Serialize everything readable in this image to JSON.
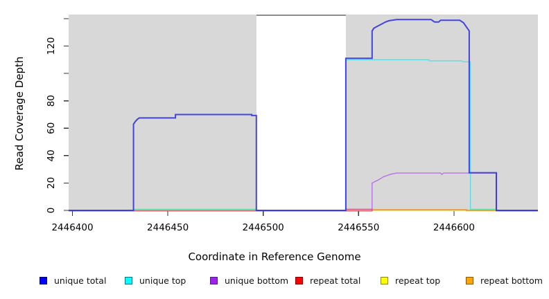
{
  "chart_data": {
    "type": "line",
    "title": "",
    "xlabel": "Coordinate in Reference Genome",
    "ylabel": "Read Coverage Depth",
    "xlim": [
      2446398,
      2446644
    ],
    "ylim": [
      -0.5,
      143
    ],
    "grid": false,
    "legend_position": "bottom",
    "panel_background": "#d8d8d8",
    "x_ticks": [
      {
        "value": 2446400,
        "label": "2446400"
      },
      {
        "value": 2446450,
        "label": "2446450"
      },
      {
        "value": 2446500,
        "label": "2446500"
      },
      {
        "value": 2446550,
        "label": "2446550"
      },
      {
        "value": 2446600,
        "label": "2446600"
      }
    ],
    "y_ticks": [
      {
        "value": 0,
        "label": "0"
      },
      {
        "value": 20,
        "label": "20"
      },
      {
        "value": 40,
        "label": "40"
      },
      {
        "value": 60,
        "label": "60"
      },
      {
        "value": 80,
        "label": "80"
      },
      {
        "value": 100,
        "label": ""
      },
      {
        "value": 120,
        "label": "120"
      },
      {
        "value": 140,
        "label": ""
      }
    ],
    "shaded_regions": [
      {
        "x0": 2446398,
        "x1": 2446496.4,
        "color": "#d8d8d8"
      },
      {
        "x0": 2446543.3,
        "x1": 2446644,
        "color": "#d8d8d8"
      }
    ],
    "uncovered_gap": {
      "x0": 2446496.4,
      "x1": 2446543.3,
      "cap_color": "#8c8c8c"
    },
    "series": [
      {
        "name": "repeat top",
        "color": "#ffff00",
        "plot_color": "#d8e868",
        "opacity": 1,
        "width": 1.4,
        "points": [
          [
            2446398,
            0
          ],
          [
            2446432,
            0
          ],
          [
            2446432,
            0.8
          ],
          [
            2446496.4,
            0.8
          ],
          [
            2446496.4,
            0
          ],
          [
            2446608.6,
            0
          ],
          [
            2446608.6,
            0.8
          ],
          [
            2446622.2,
            0.8
          ],
          [
            2446622.2,
            0
          ],
          [
            2446644,
            0
          ]
        ]
      },
      {
        "name": "repeat total",
        "color": "#ff0000",
        "plot_color": "#d4608e",
        "opacity": 1,
        "width": 1.5,
        "points": [
          [
            2446398,
            0
          ],
          [
            2446543.3,
            0
          ],
          [
            2446543.3,
            0.8
          ],
          [
            2446557.1,
            0.8
          ],
          [
            2446557.1,
            0.5
          ],
          [
            2446606.6,
            0.5
          ],
          [
            2446606.6,
            0
          ],
          [
            2446644,
            0
          ]
        ]
      },
      {
        "name": "repeat bottom",
        "color": "#ffa500",
        "plot_color": "#ff9d20",
        "opacity": 1,
        "width": 1.7,
        "points": [
          [
            2446398,
            0
          ],
          [
            2446557.1,
            0
          ],
          [
            2446557.1,
            0.4
          ],
          [
            2446606.6,
            0.4
          ],
          [
            2446606.6,
            0
          ],
          [
            2446644,
            0
          ]
        ]
      },
      {
        "name": "unique bottom",
        "color": "#a020f0",
        "plot_color": "#a020f0",
        "opacity": 0.6,
        "width": 1.3,
        "points": [
          [
            2446398,
            -0.5
          ],
          [
            2446557.1,
            -0.5
          ],
          [
            2446557.1,
            20
          ],
          [
            2446558.5,
            21
          ],
          [
            2446560,
            22
          ],
          [
            2446561.5,
            23.2
          ],
          [
            2446563,
            24.5
          ],
          [
            2446565,
            25.5
          ],
          [
            2446567,
            26.5
          ],
          [
            2446570,
            27.3
          ],
          [
            2446593,
            27.3
          ],
          [
            2446593.6,
            26.3
          ],
          [
            2446594.6,
            27.3
          ],
          [
            2446622.2,
            27.3
          ],
          [
            2446622.2,
            -0.5
          ],
          [
            2446644,
            -0.5
          ]
        ]
      },
      {
        "name": "unique top",
        "color": "#00ffff",
        "plot_color": "#00dde8",
        "opacity": 0.55,
        "width": 1.4,
        "points": [
          [
            2446398,
            0
          ],
          [
            2446432,
            0
          ],
          [
            2446432,
            0.8
          ],
          [
            2446496.4,
            0.8
          ],
          [
            2446496.4,
            0
          ],
          [
            2446543.3,
            0
          ],
          [
            2446543.3,
            110
          ],
          [
            2446587,
            110
          ],
          [
            2446587,
            109.2
          ],
          [
            2446604,
            109.2
          ],
          [
            2446605,
            108.5
          ],
          [
            2446608.6,
            108.5
          ],
          [
            2446608.6,
            0.8
          ],
          [
            2446622.2,
            0.8
          ],
          [
            2446622.2,
            0
          ],
          [
            2446644,
            0
          ]
        ]
      },
      {
        "name": "unique total",
        "color": "#0000ff",
        "plot_color": "#3333e0",
        "opacity": 0.9,
        "width": 2,
        "points": [
          [
            2446398,
            0
          ],
          [
            2446432,
            0
          ],
          [
            2446432,
            63
          ],
          [
            2446433,
            65
          ],
          [
            2446434,
            66.5
          ],
          [
            2446435,
            67.5
          ],
          [
            2446454,
            67.5
          ],
          [
            2446454,
            70
          ],
          [
            2446494,
            70
          ],
          [
            2446494,
            69.3
          ],
          [
            2446496.4,
            69.3
          ],
          [
            2446496.4,
            0
          ],
          [
            2446543.3,
            0
          ],
          [
            2446543.3,
            111
          ],
          [
            2446557.1,
            111
          ],
          [
            2446557.1,
            131
          ],
          [
            2446558,
            133
          ],
          [
            2446560,
            134.5
          ],
          [
            2446562,
            136
          ],
          [
            2446564,
            137.5
          ],
          [
            2446566,
            138.5
          ],
          [
            2446570,
            139.3
          ],
          [
            2446588,
            139.3
          ],
          [
            2446589.8,
            137.6
          ],
          [
            2446592,
            137.6
          ],
          [
            2446593,
            138.8
          ],
          [
            2446603,
            138.8
          ],
          [
            2446605,
            137
          ],
          [
            2446606.5,
            134
          ],
          [
            2446608,
            131
          ],
          [
            2446608,
            27.5
          ],
          [
            2446622.2,
            27.5
          ],
          [
            2446622.2,
            0
          ],
          [
            2446644,
            0
          ]
        ]
      }
    ]
  },
  "legend": {
    "items": [
      {
        "label": "unique total",
        "color": "#0000ff",
        "border": "#000080"
      },
      {
        "label": "unique top",
        "color": "#00ffff",
        "border": "#007a7a"
      },
      {
        "label": "unique bottom",
        "color": "#a020f0",
        "border": "#551a8b"
      },
      {
        "label": "repeat total",
        "color": "#ff0000",
        "border": "#8b0000"
      },
      {
        "label": "repeat top",
        "color": "#ffff00",
        "border": "#8b8b00"
      },
      {
        "label": "repeat bottom",
        "color": "#ffa500",
        "border": "#8b5a00"
      }
    ]
  }
}
